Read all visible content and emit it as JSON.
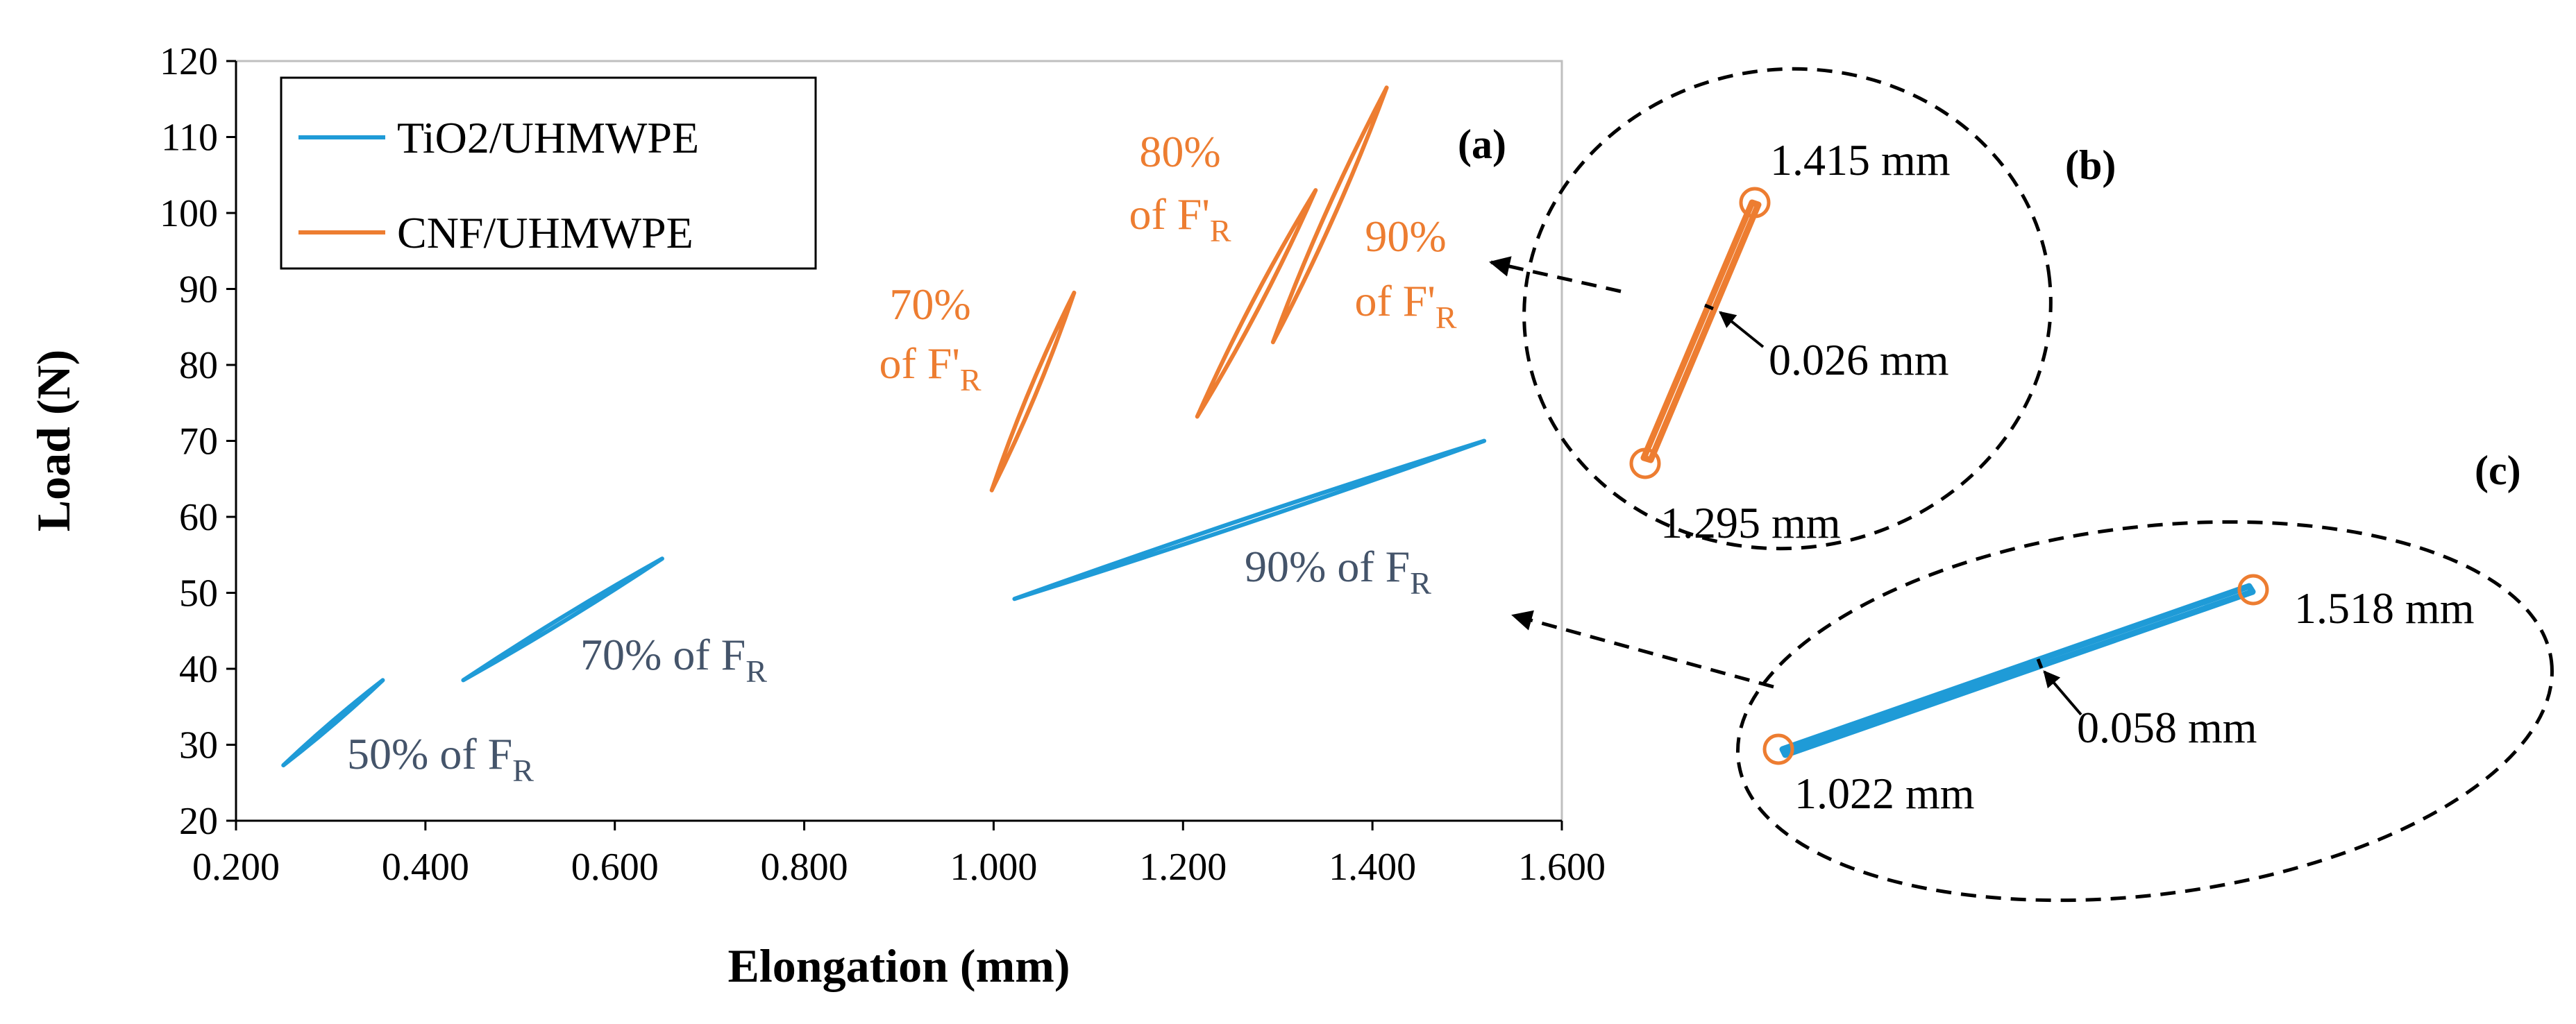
{
  "chart_data": {
    "type": "line",
    "title": "",
    "xlabel": "Elongation (mm)",
    "ylabel": "Load (N)",
    "xlim": [
      0.2,
      1.6
    ],
    "ylim": [
      20,
      120
    ],
    "xticks": [
      0.2,
      0.4,
      0.6,
      0.8,
      1.0,
      1.2,
      1.4,
      1.6
    ],
    "yticks": [
      20,
      30,
      40,
      50,
      60,
      70,
      80,
      90,
      100,
      110,
      120
    ],
    "xtick_labels": [
      "0.200",
      "0.400",
      "0.600",
      "0.800",
      "1.000",
      "1.200",
      "1.400",
      "1.600"
    ],
    "ytick_labels": [
      "20",
      "30",
      "40",
      "50",
      "60",
      "70",
      "80",
      "90",
      "100",
      "110",
      "120"
    ],
    "grid": false,
    "legend_position": "top-left",
    "panel_label": "(a)",
    "series": [
      {
        "name": "TiO2/UHMWPE",
        "color": "#1F9BD7",
        "loops": [
          {
            "label": "50% of F",
            "sub": "R",
            "x": [
              0.25,
              0.355
            ],
            "y": [
              27.3,
              38.5
            ],
            "width": 0.6
          },
          {
            "label": "70% of F",
            "sub": "R",
            "x": [
              0.44,
              0.65
            ],
            "y": [
              38.5,
              54.5
            ],
            "width": 0.8
          },
          {
            "label": "90% of F",
            "sub": "R",
            "x": [
              1.022,
              1.518
            ],
            "y": [
              49.2,
              70.0
            ],
            "width": 0.9
          }
        ]
      },
      {
        "name": "CNF/UHMWPE",
        "color": "#ED7D31",
        "loops": [
          {
            "label_line1": "70%",
            "label_line2": "of F'",
            "sub": "R",
            "x": [
              0.998,
              1.085
            ],
            "y": [
              63.5,
              89.5
            ],
            "width": 1.3
          },
          {
            "label_line1": "80%",
            "label_line2": "of F'",
            "sub": "R",
            "x": [
              1.215,
              1.34
            ],
            "y": [
              73.2,
              103.0
            ],
            "width": 1.5
          },
          {
            "label_line1": "90%",
            "label_line2": "of F'",
            "sub": "R",
            "x": [
              1.295,
              1.415
            ],
            "y": [
              83.0,
              116.5
            ],
            "width": 1.6
          }
        ]
      }
    ],
    "insets": [
      {
        "panel_label": "(b)",
        "series": "CNF/UHMWPE",
        "start_label": "1.295 mm",
        "end_label": "1.415 mm",
        "width_label": "0.026 mm"
      },
      {
        "panel_label": "(c)",
        "series": "TiO2/UHMWPE",
        "start_label": "1.022 mm",
        "end_label": "1.518 mm",
        "width_label": "0.058 mm"
      }
    ]
  }
}
